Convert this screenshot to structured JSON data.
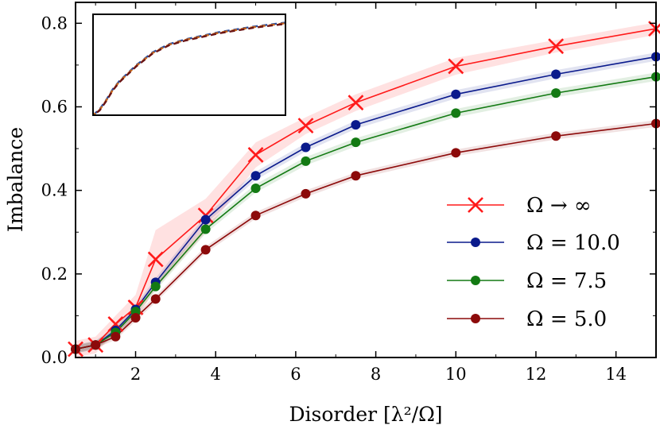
{
  "chart_data": {
    "type": "line",
    "xlabel": "Disorder [λ²/Ω]",
    "ylabel": "Imbalance",
    "xlim": [
      0.5,
      15.0
    ],
    "ylim": [
      0.0,
      0.85
    ],
    "xticks": [
      2,
      4,
      6,
      8,
      10,
      12,
      14
    ],
    "yticks": [
      0.0,
      0.2,
      0.4,
      0.6,
      0.8
    ],
    "xtick_labels": [
      "2",
      "4",
      "6",
      "8",
      "10",
      "12",
      "14"
    ],
    "ytick_labels": [
      "0.0",
      "0.2",
      "0.4",
      "0.6",
      "0.8"
    ],
    "grid": false,
    "legend_position": "lower-right",
    "series": [
      {
        "name": "Ω → ∞",
        "color": "#ff1a1a",
        "marker": "x",
        "x": [
          0.5,
          1.0,
          1.5,
          2.0,
          2.5,
          3.75,
          5.0,
          6.25,
          7.5,
          10.0,
          12.5,
          15.0
        ],
        "y": [
          0.02,
          0.03,
          0.08,
          0.12,
          0.235,
          0.34,
          0.485,
          0.555,
          0.61,
          0.697,
          0.745,
          0.787
        ],
        "band": [
          0.02,
          0.02,
          0.02,
          0.03,
          0.07,
          0.04,
          0.03,
          0.02,
          0.02,
          0.02,
          0.015,
          0.015
        ]
      },
      {
        "name": "Ω = 10.0",
        "color": "#0a1a8c",
        "marker": "o",
        "x": [
          0.5,
          1.0,
          1.5,
          2.0,
          2.5,
          3.75,
          5.0,
          6.25,
          7.5,
          10.0,
          12.5,
          15.0
        ],
        "y": [
          0.02,
          0.03,
          0.065,
          0.115,
          0.18,
          0.33,
          0.435,
          0.503,
          0.557,
          0.63,
          0.678,
          0.72
        ],
        "band": [
          0.01,
          0.01,
          0.01,
          0.01,
          0.01,
          0.01,
          0.01,
          0.01,
          0.01,
          0.01,
          0.01,
          0.01
        ]
      },
      {
        "name": "Ω = 7.5",
        "color": "#137a13",
        "marker": "o",
        "x": [
          0.5,
          1.0,
          1.5,
          2.0,
          2.5,
          3.75,
          5.0,
          6.25,
          7.5,
          10.0,
          12.5,
          15.0
        ],
        "y": [
          0.02,
          0.03,
          0.06,
          0.11,
          0.17,
          0.307,
          0.405,
          0.47,
          0.515,
          0.585,
          0.633,
          0.672
        ],
        "band": [
          0.01,
          0.01,
          0.01,
          0.01,
          0.01,
          0.01,
          0.01,
          0.01,
          0.01,
          0.01,
          0.01,
          0.01
        ]
      },
      {
        "name": "Ω = 5.0",
        "color": "#8c0a0a",
        "marker": "o",
        "x": [
          0.5,
          1.0,
          1.5,
          2.0,
          2.5,
          3.75,
          5.0,
          6.25,
          7.5,
          10.0,
          12.5,
          15.0
        ],
        "y": [
          0.02,
          0.03,
          0.05,
          0.095,
          0.14,
          0.258,
          0.34,
          0.392,
          0.435,
          0.49,
          0.53,
          0.56
        ],
        "band": [
          0.008,
          0.008,
          0.008,
          0.008,
          0.008,
          0.008,
          0.008,
          0.008,
          0.008,
          0.008,
          0.008,
          0.008
        ]
      }
    ],
    "inset": {
      "xlim": [
        0.5,
        15.0
      ],
      "ylim": [
        0.0,
        0.85
      ],
      "series": [
        {
          "name": "blue dashed",
          "color": "#2a4fa0",
          "x": [
            0.5,
            1.0,
            1.5,
            2.0,
            2.5,
            3.75,
            5.0,
            6.25,
            7.5,
            10.0,
            12.5,
            15.0
          ],
          "y": [
            0.0,
            0.05,
            0.13,
            0.22,
            0.29,
            0.42,
            0.53,
            0.6,
            0.64,
            0.7,
            0.745,
            0.78
          ]
        },
        {
          "name": "orange dashed",
          "color": "#c8661a",
          "x": [
            0.5,
            1.0,
            1.5,
            2.0,
            2.5,
            3.75,
            5.0,
            6.25,
            7.5,
            10.0,
            12.5,
            15.0
          ],
          "y": [
            0.0,
            0.045,
            0.125,
            0.215,
            0.285,
            0.415,
            0.525,
            0.595,
            0.635,
            0.695,
            0.74,
            0.775
          ]
        },
        {
          "name": "dark red dashed",
          "color": "#6a1414",
          "x": [
            0.5,
            1.0,
            1.5,
            2.0,
            2.5,
            3.75,
            5.0,
            6.25,
            7.5,
            10.0,
            12.5,
            15.0
          ],
          "y": [
            0.0,
            0.04,
            0.12,
            0.21,
            0.28,
            0.41,
            0.52,
            0.59,
            0.63,
            0.69,
            0.735,
            0.77
          ]
        }
      ]
    }
  }
}
